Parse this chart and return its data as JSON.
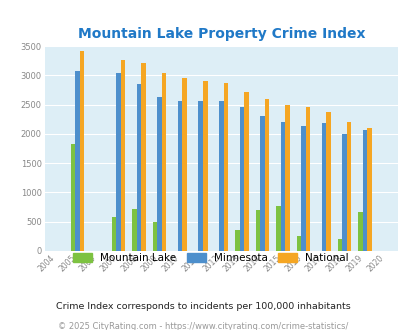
{
  "title": "Mountain Lake Property Crime Index",
  "title_color": "#2079c7",
  "years": [
    2004,
    2005,
    2006,
    2007,
    2008,
    2009,
    2010,
    2011,
    2012,
    2013,
    2014,
    2015,
    2016,
    2017,
    2018,
    2019,
    2020
  ],
  "mountain_lake": [
    0,
    1820,
    0,
    570,
    720,
    490,
    0,
    0,
    0,
    360,
    700,
    760,
    250,
    0,
    200,
    660,
    0
  ],
  "minnesota": [
    0,
    3080,
    0,
    3040,
    2850,
    2630,
    2570,
    2560,
    2570,
    2460,
    2310,
    2210,
    2130,
    2180,
    2000,
    2060,
    0
  ],
  "national": [
    0,
    3410,
    0,
    3260,
    3210,
    3040,
    2960,
    2910,
    2870,
    2720,
    2600,
    2490,
    2460,
    2370,
    2200,
    2100,
    0
  ],
  "mountain_lake_color": "#7dc241",
  "minnesota_color": "#4d8fcc",
  "national_color": "#f5a623",
  "bg_color": "#ddeef6",
  "ylim": [
    0,
    3500
  ],
  "yticks": [
    0,
    500,
    1000,
    1500,
    2000,
    2500,
    3000,
    3500
  ],
  "legend_labels": [
    "Mountain Lake",
    "Minnesota",
    "National"
  ],
  "footnote1": "Crime Index corresponds to incidents per 100,000 inhabitants",
  "footnote2": "© 2025 CityRating.com - https://www.cityrating.com/crime-statistics/",
  "footnote1_color": "#222222",
  "footnote2_color": "#999999"
}
